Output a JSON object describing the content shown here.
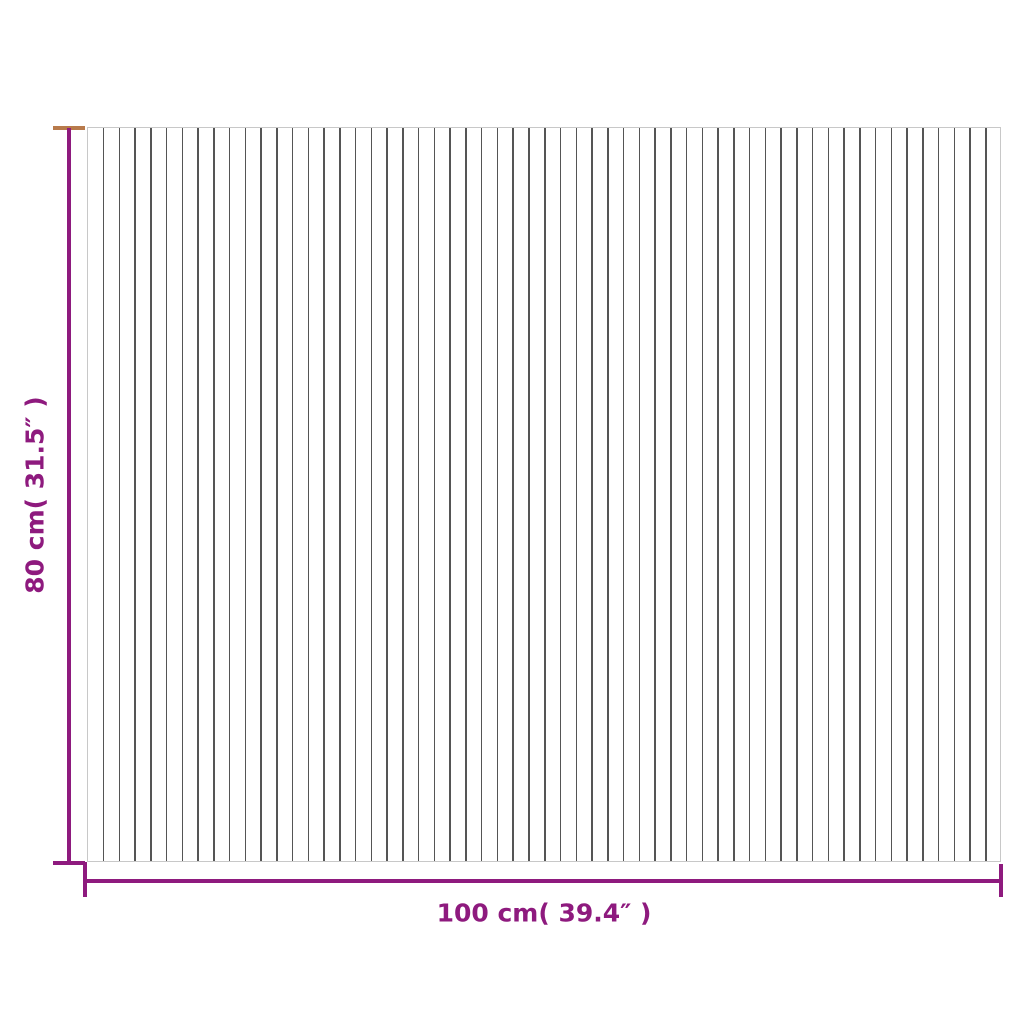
{
  "colors": {
    "accent": "#8e1a7e",
    "top_cap": "#b87a4b",
    "slat_line": "#555555"
  },
  "dimensions": {
    "height_label": "80 cm( 31.5″ )",
    "width_label": "100 cm( 39.4″ )"
  },
  "panel": {
    "slat_count": 58
  }
}
